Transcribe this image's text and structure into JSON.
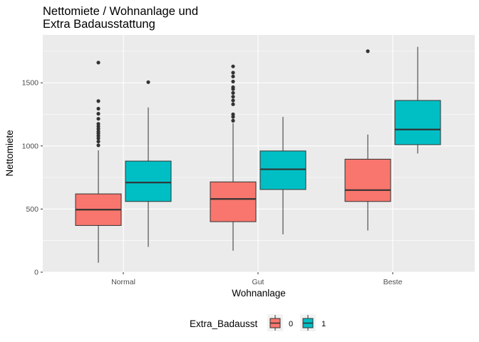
{
  "chart_data": {
    "type": "boxplot",
    "title": [
      "Nettomiete / Wohnanlage und",
      "Extra Badausstattung"
    ],
    "xlabel": "Wohnanlage",
    "ylabel": "Nettomiete",
    "ylim": [
      0,
      1800
    ],
    "yticks": [
      0,
      500,
      1000,
      1500
    ],
    "categories": [
      "Normal",
      "Gut",
      "Beste"
    ],
    "grid": true,
    "legend": {
      "title": "Extra_Badausst",
      "position": "bottom"
    },
    "series": [
      {
        "name": "0",
        "color": "#F8766D",
        "boxes": [
          {
            "category": "Normal",
            "min": 75,
            "q1": 370,
            "median": 495,
            "q3": 620,
            "max": 965,
            "outliers": [
              1005,
              1035,
              1060,
              1080,
              1100,
              1115,
              1135,
              1155,
              1175,
              1215,
              1255,
              1295,
              1355,
              1660
            ]
          },
          {
            "category": "Gut",
            "min": 170,
            "q1": 400,
            "median": 580,
            "q3": 715,
            "max": 1180,
            "outliers": [
              1200,
              1230,
              1250,
              1330,
              1360,
              1390,
              1420,
              1450,
              1465,
              1510,
              1550,
              1580,
              1630
            ]
          },
          {
            "category": "Beste",
            "min": 330,
            "q1": 560,
            "median": 650,
            "q3": 895,
            "max": 1090,
            "outliers": [
              1750
            ]
          }
        ]
      },
      {
        "name": "1",
        "color": "#00BFC4",
        "boxes": [
          {
            "category": "Normal",
            "min": 200,
            "q1": 560,
            "median": 710,
            "q3": 880,
            "max": 1305,
            "outliers": [
              1505
            ]
          },
          {
            "category": "Gut",
            "min": 300,
            "q1": 655,
            "median": 815,
            "q3": 960,
            "max": 1230,
            "outliers": []
          },
          {
            "category": "Beste",
            "min": 940,
            "q1": 1010,
            "median": 1130,
            "q3": 1360,
            "max": 1785,
            "outliers": []
          }
        ]
      }
    ]
  }
}
